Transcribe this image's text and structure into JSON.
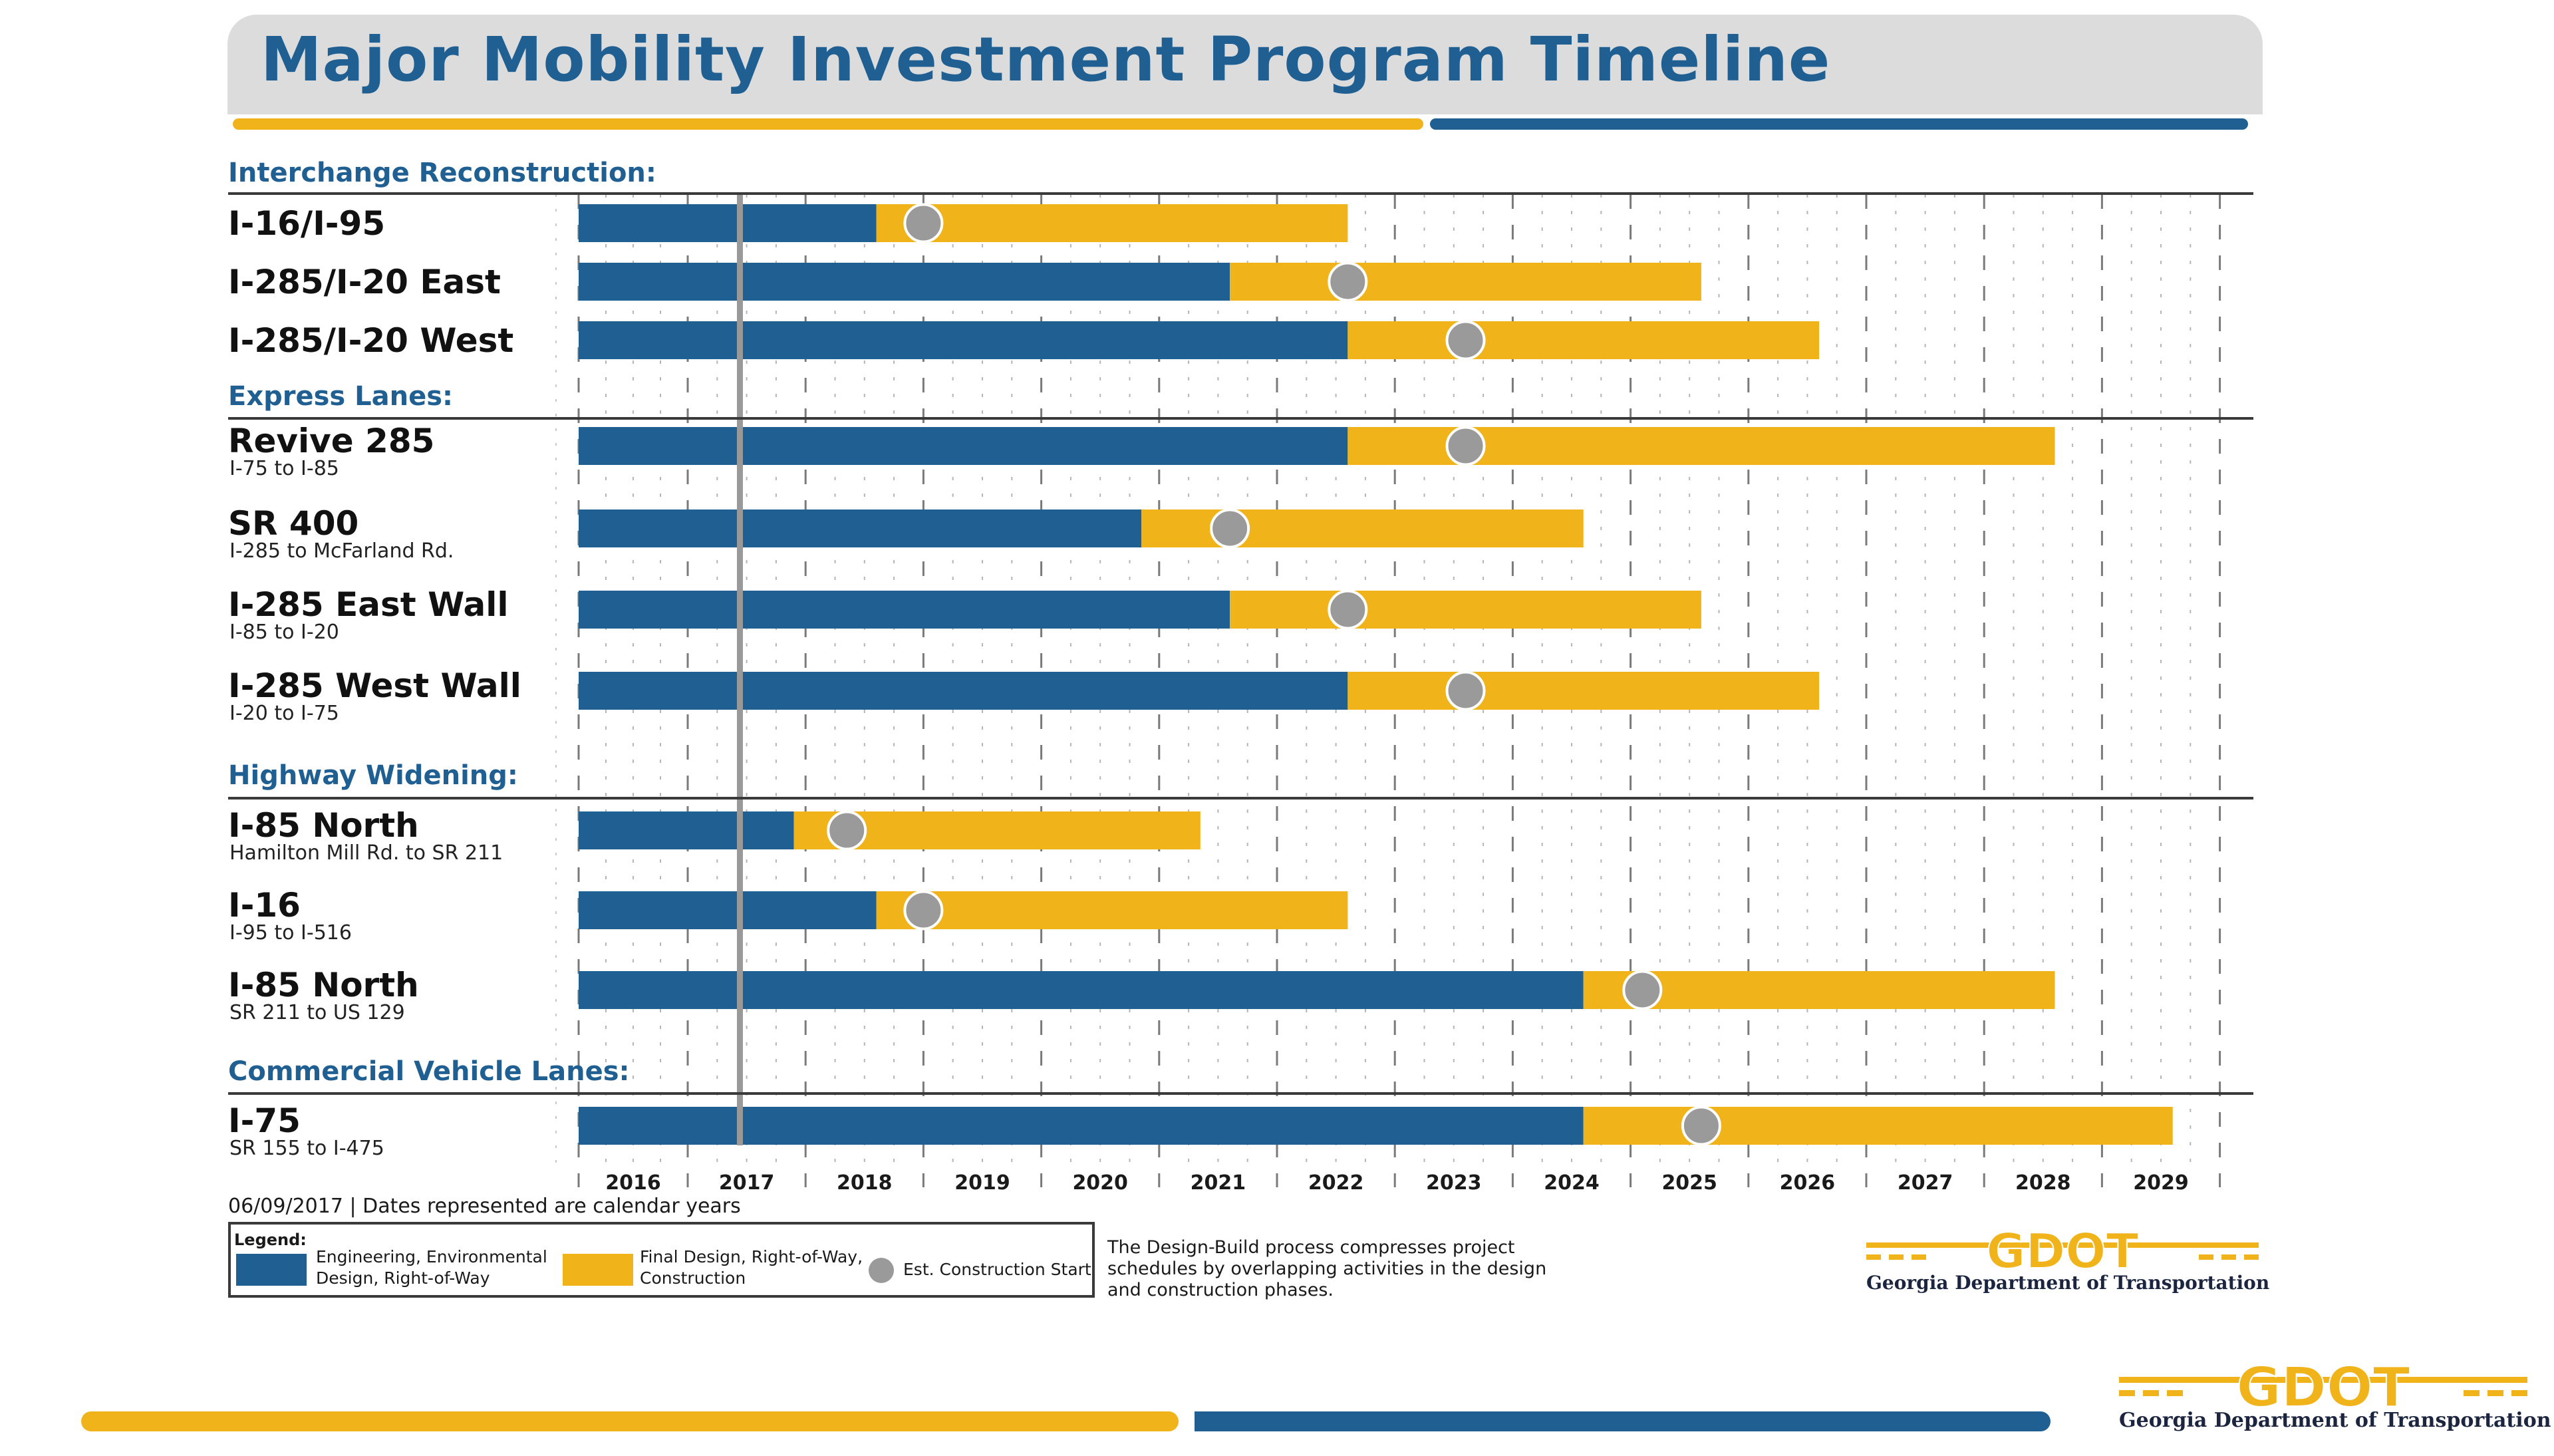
{
  "title": "Major Mobility Investment Program Timeline",
  "colors": {
    "design_phase": "#1f5f92",
    "construction_phase": "#f0b31a",
    "construction_start": "#9a9a9a",
    "today_line": "#999999",
    "section_title": "#1f5f92",
    "title_band": "#dcdcdd"
  },
  "chart_data": {
    "type": "gantt",
    "title": "Major Mobility Investment Program Timeline",
    "x_axis": {
      "unit": "calendar year",
      "range": [
        2016,
        2030
      ],
      "tick_labels": [
        "2016",
        "2017",
        "2018",
        "2019",
        "2020",
        "2021",
        "2022",
        "2023",
        "2024",
        "2025",
        "2026",
        "2027",
        "2028",
        "2029"
      ],
      "minor_ticks_per_year": 4
    },
    "today_marker": 2017.44,
    "sections": [
      {
        "name": "Interchange Reconstruction:",
        "projects": [
          {
            "name": "I-16/I-95",
            "subtitle": "",
            "start": 2016,
            "design_end": 2018.6,
            "construction_start": 2019.0,
            "end": 2022.6
          },
          {
            "name": "I-285/I-20 East",
            "subtitle": "",
            "start": 2016,
            "design_end": 2021.6,
            "construction_start": 2022.6,
            "end": 2025.6
          },
          {
            "name": "I-285/I-20 West",
            "subtitle": "",
            "start": 2016,
            "design_end": 2022.6,
            "construction_start": 2023.6,
            "end": 2026.6
          }
        ]
      },
      {
        "name": "Express Lanes:",
        "projects": [
          {
            "name": "Revive 285",
            "subtitle": "I-75 to I-85",
            "start": 2016,
            "design_end": 2022.6,
            "construction_start": 2023.6,
            "end": 2028.6
          },
          {
            "name": "SR 400",
            "subtitle": "I-285 to McFarland Rd.",
            "start": 2016,
            "design_end": 2020.85,
            "construction_start": 2021.6,
            "end": 2024.6
          },
          {
            "name": "I-285 East Wall",
            "subtitle": "I-85 to I-20",
            "start": 2016,
            "design_end": 2021.6,
            "construction_start": 2022.6,
            "end": 2025.6
          },
          {
            "name": "I-285 West Wall",
            "subtitle": "I-20 to I-75",
            "start": 2016,
            "design_end": 2022.6,
            "construction_start": 2023.6,
            "end": 2026.6
          }
        ]
      },
      {
        "name": "Highway Widening:",
        "projects": [
          {
            "name": "I-85 North",
            "subtitle": "Hamilton Mill Rd. to SR 211",
            "start": 2016,
            "design_end": 2017.9,
            "construction_start": 2018.35,
            "end": 2021.35
          },
          {
            "name": "I-16",
            "subtitle": "I-95 to I-516",
            "start": 2016,
            "design_end": 2018.6,
            "construction_start": 2019.0,
            "end": 2022.6
          },
          {
            "name": "I-85 North",
            "subtitle": "SR 211 to US 129",
            "start": 2016,
            "design_end": 2024.6,
            "construction_start": 2025.1,
            "end": 2028.6
          }
        ]
      },
      {
        "name": "Commercial Vehicle Lanes:",
        "projects": [
          {
            "name": "I-75",
            "subtitle": "SR 155 to I-475",
            "start": 2016,
            "design_end": 2024.6,
            "construction_start": 2025.6,
            "end": 2029.6
          }
        ]
      }
    ],
    "legend": [
      {
        "label": "Engineering, Environmental Design, Right-of-Way",
        "kind": "bar",
        "color": "#1f5f92"
      },
      {
        "label": "Final Design, Right-of-Way, Construction",
        "kind": "bar",
        "color": "#f0b31a"
      },
      {
        "label": "Est. Construction Start",
        "kind": "marker",
        "color": "#9a9a9a"
      }
    ]
  },
  "labels": {
    "date_note": "06/09/2017 | Dates represented are calendar years",
    "legend_title": "Legend:",
    "legend_blue_line1": "Engineering, Environmental",
    "legend_blue_line2": "Design, Right-of-Way",
    "legend_orange_line1": "Final Design, Right-of-Way,",
    "legend_orange_line2": "Construction",
    "legend_circle": "Est. Construction Start",
    "design_build_note": "The Design-Build process compresses project schedules by overlapping activities in the design and construction phases."
  },
  "logo": {
    "wordmark": "GDOT",
    "caption": "Georgia Department of Transportation",
    "color": "#f0b31a",
    "icon": "gdot-logo-icon"
  }
}
